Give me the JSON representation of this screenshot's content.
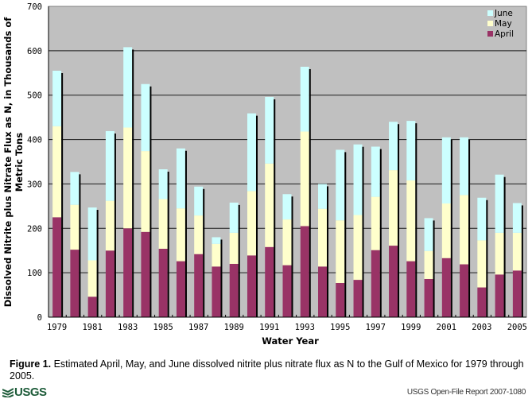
{
  "chart_data": {
    "type": "bar",
    "stacked": true,
    "title": "",
    "xlabel": "Water Year",
    "ylabel": "Dissolved Nitrite plus Nitrate Flux as N, in Thousands of Metric Tons",
    "ylim": [
      0,
      700
    ],
    "yticks": [
      0,
      100,
      200,
      300,
      400,
      500,
      600,
      700
    ],
    "grid": true,
    "legend_position": "top-right",
    "categories": [
      "1979",
      "1980",
      "1981",
      "1982",
      "1983",
      "1984",
      "1985",
      "1986",
      "1987",
      "1988",
      "1989",
      "1990",
      "1991",
      "1992",
      "1993",
      "1994",
      "1995",
      "1996",
      "1997",
      "1998",
      "1999",
      "2000",
      "2001",
      "2002",
      "2003",
      "2004",
      "2005"
    ],
    "xtick_labels": [
      "1979",
      "1981",
      "1983",
      "1985",
      "1987",
      "1989",
      "1991",
      "1993",
      "1995",
      "1997",
      "1999",
      "2001",
      "2003",
      "2005"
    ],
    "series": [
      {
        "name": "April",
        "color": "#993366",
        "values": [
          225,
          152,
          46,
          150,
          200,
          192,
          154,
          126,
          142,
          114,
          120,
          139,
          158,
          117,
          205,
          114,
          77,
          84,
          151,
          161,
          126,
          86,
          133,
          119,
          67,
          96,
          105
        ]
      },
      {
        "name": "May",
        "color": "#ffffcc",
        "values": [
          205,
          101,
          82,
          112,
          227,
          182,
          112,
          119,
          87,
          51,
          70,
          145,
          188,
          103,
          213,
          130,
          141,
          146,
          120,
          170,
          182,
          63,
          123,
          156,
          106,
          94,
          85
        ]
      },
      {
        "name": "June",
        "color": "#ccffff",
        "values": [
          125,
          74,
          119,
          157,
          181,
          151,
          67,
          135,
          65,
          15,
          68,
          175,
          150,
          57,
          146,
          56,
          159,
          159,
          113,
          109,
          134,
          74,
          149,
          130,
          96,
          131,
          67
        ]
      }
    ],
    "legend_order": [
      "June",
      "May",
      "April"
    ]
  },
  "caption": {
    "label": "Figure 1.",
    "text": " Estimated April, May, and June dissolved nitrite plus nitrate flux as N to the Gulf of Mexico for 1979 through 2005."
  },
  "footer": {
    "logo_text": "USGS",
    "report": "USGS Open-File Report 2007-1080"
  },
  "colors": {
    "plot_background": "#c0c0c0",
    "gridline": "#000000"
  }
}
